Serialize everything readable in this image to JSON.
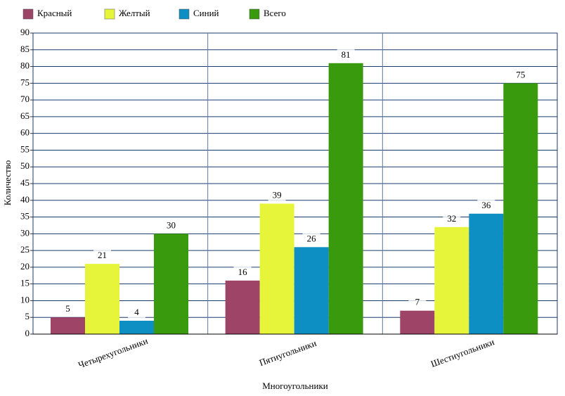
{
  "chart_data": {
    "type": "bar",
    "xlabel": "Многоугольники",
    "ylabel": "Количество",
    "categories": [
      "Четырехугольники",
      "Пятиугольники",
      "Шестиугольники"
    ],
    "series": [
      {
        "name": "Красный",
        "color": "#9e4466",
        "values": [
          5,
          16,
          7
        ]
      },
      {
        "name": "Желтый",
        "color": "#e6f53a",
        "values": [
          21,
          39,
          32
        ]
      },
      {
        "name": "Синий",
        "color": "#0d8fc4",
        "values": [
          4,
          26,
          36
        ]
      },
      {
        "name": "Всего",
        "color": "#3a9a0e",
        "values": [
          30,
          81,
          75
        ]
      }
    ],
    "ylim": [
      0,
      90
    ],
    "yticks": [
      0,
      5,
      10,
      15,
      20,
      25,
      30,
      35,
      40,
      45,
      50,
      55,
      60,
      65,
      70,
      75,
      80,
      85,
      90
    ],
    "grid": true,
    "legend": "top"
  }
}
